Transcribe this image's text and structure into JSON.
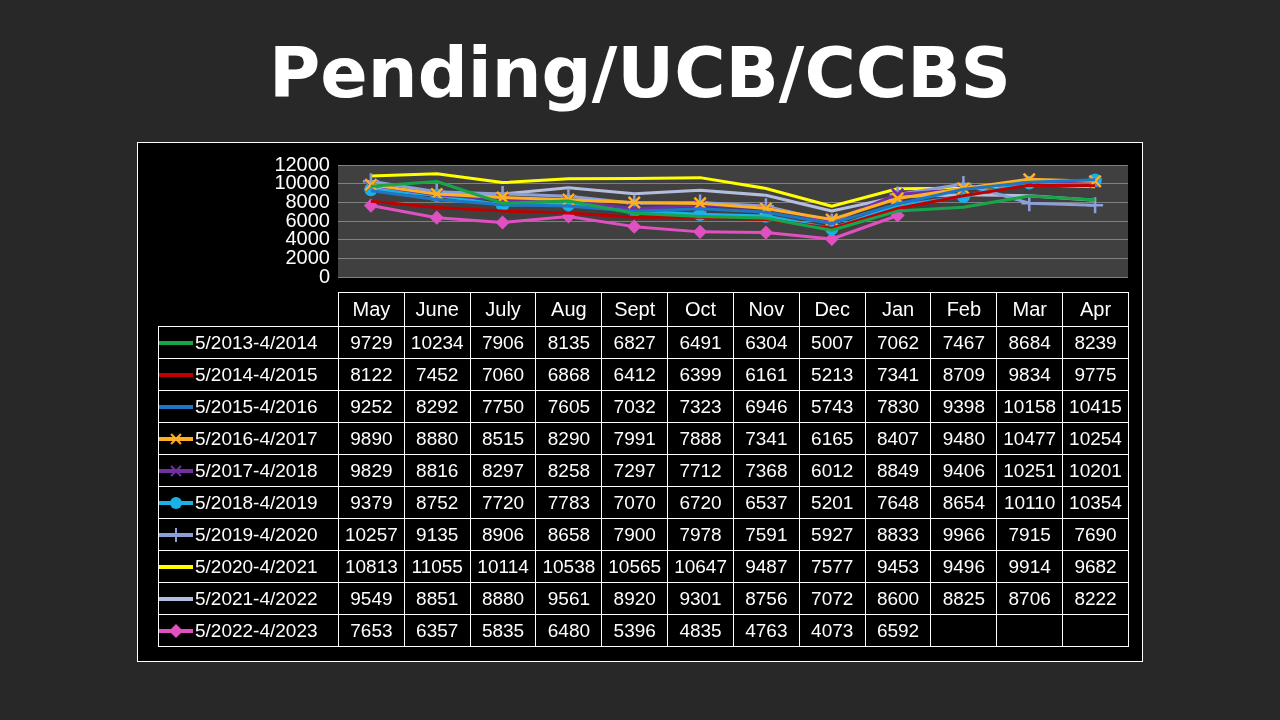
{
  "chart_data": {
    "type": "line",
    "title": "Pending/UCB/CCBS",
    "categories": [
      "May",
      "June",
      "July",
      "Aug",
      "Sept",
      "Oct",
      "Nov",
      "Dec",
      "Jan",
      "Feb",
      "Mar",
      "Apr"
    ],
    "ylim": [
      0,
      12000
    ],
    "yticks": [
      0,
      2000,
      4000,
      6000,
      8000,
      10000,
      12000
    ],
    "grid": "y",
    "legend": "bottom",
    "data_labels": true,
    "line_style": "solid",
    "series": [
      {
        "name": "5/2013-4/2014",
        "color": "#17a54a",
        "marker": "none",
        "values": [
          9729,
          10234,
          7906,
          8135,
          6827,
          6491,
          6304,
          5007,
          7062,
          7467,
          8684,
          8239
        ]
      },
      {
        "name": "5/2014-4/2015",
        "color": "#c00000",
        "marker": "none",
        "values": [
          8122,
          7452,
          7060,
          6868,
          6412,
          6399,
          6161,
          5213,
          7341,
          8709,
          9834,
          9775
        ]
      },
      {
        "name": "5/2015-4/2016",
        "color": "#1f77c4",
        "marker": "none",
        "values": [
          9252,
          8292,
          7750,
          7605,
          7032,
          7323,
          6946,
          5743,
          7830,
          9398,
          10158,
          10415
        ]
      },
      {
        "name": "5/2016-4/2017",
        "color": "#ffb020",
        "marker": "cross",
        "values": [
          9890,
          8880,
          8515,
          8290,
          7991,
          7888,
          7341,
          6165,
          8407,
          9480,
          10477,
          10254
        ]
      },
      {
        "name": "5/2017-4/2018",
        "color": "#7030a0",
        "marker": "cross",
        "values": [
          9829,
          8816,
          8297,
          8258,
          7297,
          7712,
          7368,
          6012,
          8849,
          9406,
          10251,
          10201
        ]
      },
      {
        "name": "5/2018-4/2019",
        "color": "#1ab0e8",
        "marker": "circle",
        "values": [
          9379,
          8752,
          7720,
          7783,
          7070,
          6720,
          6537,
          5201,
          7648,
          8654,
          10110,
          10354
        ]
      },
      {
        "name": "5/2019-4/2020",
        "color": "#8e9fd8",
        "marker": "plus",
        "values": [
          10257,
          9135,
          8906,
          8658,
          7900,
          7978,
          7591,
          5927,
          8833,
          9966,
          7915,
          7690
        ]
      },
      {
        "name": "5/2020-4/2021",
        "color": "#ffff00",
        "marker": "none",
        "values": [
          10813,
          11055,
          10114,
          10538,
          10565,
          10647,
          9487,
          7577,
          9453,
          9496,
          9914,
          9682
        ]
      },
      {
        "name": "5/2021-4/2022",
        "color": "#b4bedc",
        "marker": "none",
        "values": [
          9549,
          8851,
          8880,
          9561,
          8920,
          9301,
          8756,
          7072,
          8600,
          8825,
          8706,
          8222
        ]
      },
      {
        "name": "5/2022-4/2023",
        "color": "#e050c0",
        "marker": "diamond",
        "values": [
          7653,
          6357,
          5835,
          6480,
          5396,
          4835,
          4763,
          4073,
          6592,
          null,
          null,
          null
        ]
      }
    ]
  }
}
